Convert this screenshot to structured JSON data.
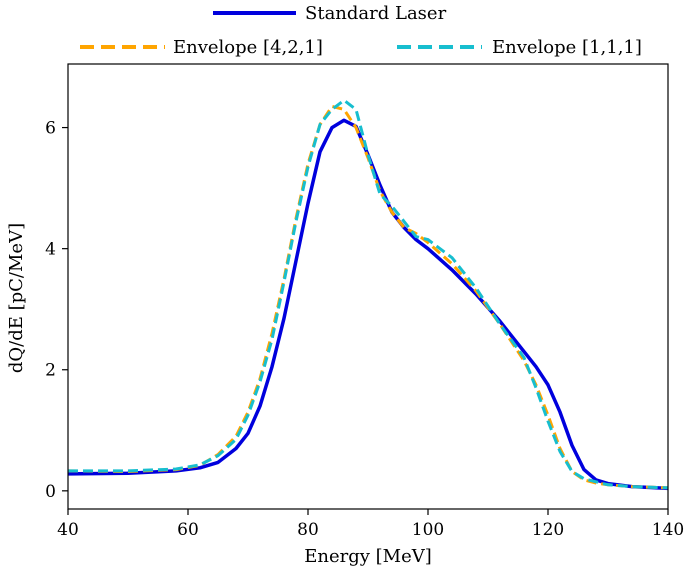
{
  "chart_data": {
    "type": "line",
    "title": "",
    "xlabel": "Energy [MeV]",
    "ylabel": "dQ/dE [pC/MeV]",
    "xlim": [
      40,
      140
    ],
    "ylim": [
      -0.3,
      7.05
    ],
    "xticks": [
      40,
      60,
      80,
      100,
      120,
      140
    ],
    "yticks": [
      0,
      2,
      4,
      6
    ],
    "grid": false,
    "legend_placement": "top-center, above plot",
    "series": [
      {
        "name": "Standard Laser",
        "color": "#0000dd",
        "style": "solid",
        "x": [
          40,
          50,
          58,
          62,
          65,
          68,
          70,
          72,
          74,
          76,
          78,
          80,
          82,
          84,
          86,
          88,
          90,
          92,
          94,
          96,
          98,
          100,
          104,
          108,
          112,
          116,
          118,
          120,
          122,
          124,
          126,
          128,
          130,
          134,
          140
        ],
        "y": [
          0.28,
          0.29,
          0.33,
          0.38,
          0.47,
          0.7,
          0.95,
          1.4,
          2.05,
          2.85,
          3.8,
          4.75,
          5.6,
          6.0,
          6.12,
          6.02,
          5.55,
          5.05,
          4.6,
          4.35,
          4.15,
          4.0,
          3.65,
          3.25,
          2.8,
          2.3,
          2.05,
          1.75,
          1.3,
          0.75,
          0.35,
          0.18,
          0.12,
          0.07,
          0.04
        ]
      },
      {
        "name": "Envelope [4,2,1]",
        "color": "#ffa500",
        "style": "dashed",
        "x": [
          40,
          50,
          58,
          62,
          65,
          68,
          70,
          72,
          74,
          76,
          78,
          80,
          82,
          84,
          86,
          88,
          90,
          92,
          94,
          96,
          98,
          100,
          104,
          108,
          112,
          116,
          118,
          120,
          122,
          124,
          126,
          128,
          130,
          134,
          140
        ],
        "y": [
          0.33,
          0.32,
          0.35,
          0.42,
          0.6,
          0.9,
          1.3,
          1.85,
          2.6,
          3.5,
          4.5,
          5.4,
          6.05,
          6.35,
          6.3,
          6.0,
          5.5,
          4.95,
          4.6,
          4.35,
          4.25,
          4.1,
          3.75,
          3.3,
          2.75,
          2.15,
          1.75,
          1.25,
          0.7,
          0.32,
          0.18,
          0.13,
          0.1,
          0.07,
          0.05
        ]
      },
      {
        "name": "Envelope [1,1,1]",
        "color": "#17becf",
        "style": "dashed",
        "x": [
          40,
          50,
          58,
          62,
          65,
          68,
          70,
          72,
          74,
          76,
          78,
          80,
          82,
          84,
          86,
          88,
          90,
          92,
          94,
          96,
          98,
          100,
          104,
          108,
          112,
          116,
          118,
          120,
          122,
          124,
          126,
          128,
          130,
          134,
          140
        ],
        "y": [
          0.33,
          0.33,
          0.36,
          0.43,
          0.58,
          0.85,
          1.25,
          1.8,
          2.5,
          3.45,
          4.45,
          5.35,
          6.05,
          6.3,
          6.45,
          6.3,
          5.55,
          4.9,
          4.7,
          4.45,
          4.2,
          4.15,
          3.85,
          3.35,
          2.75,
          2.2,
          1.7,
          1.15,
          0.65,
          0.32,
          0.2,
          0.15,
          0.1,
          0.07,
          0.05
        ]
      }
    ]
  }
}
